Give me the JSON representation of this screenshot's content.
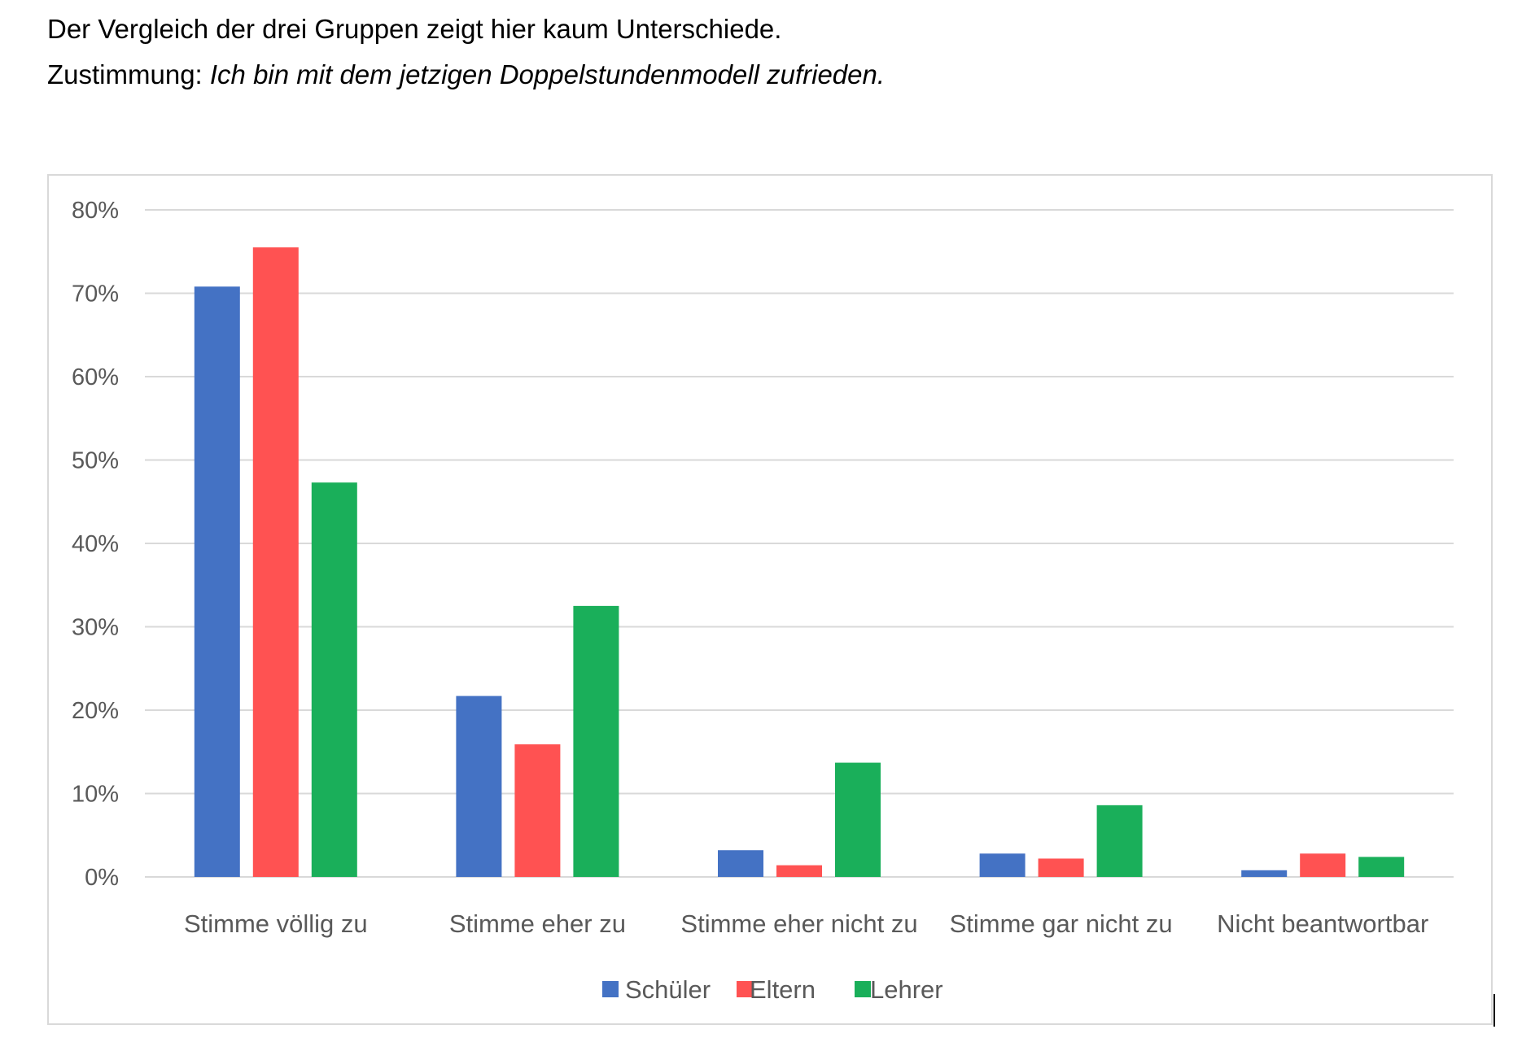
{
  "heading": {
    "line1": "Der Vergleich der drei Gruppen zeigt hier kaum Unterschiede.",
    "line2_prefix": "Zustimmung: ",
    "line2_quote": "Ich bin mit dem jetzigen Doppelstundenmodell zufrieden."
  },
  "chart_data": {
    "type": "bar",
    "categories": [
      "Stimme völlig zu",
      "Stimme eher zu",
      "Stimme eher nicht zu",
      "Stimme gar nicht zu",
      "Nicht beantwortbar"
    ],
    "series": [
      {
        "name": "Schüler",
        "color": "#4472C4",
        "values": [
          70.8,
          21.7,
          3.2,
          2.8,
          0.8
        ]
      },
      {
        "name": "Eltern",
        "color": "#FF5252",
        "values": [
          75.5,
          15.9,
          1.4,
          2.2,
          2.8
        ]
      },
      {
        "name": "Lehrer",
        "color": "#1AAF5A",
        "values": [
          47.3,
          32.5,
          13.7,
          8.6,
          2.4
        ]
      }
    ],
    "y_ticks": [
      "0%",
      "10%",
      "20%",
      "30%",
      "40%",
      "50%",
      "60%",
      "70%",
      "80%"
    ],
    "ylim": [
      0,
      80
    ],
    "grid": true,
    "legend_position": "bottom"
  }
}
